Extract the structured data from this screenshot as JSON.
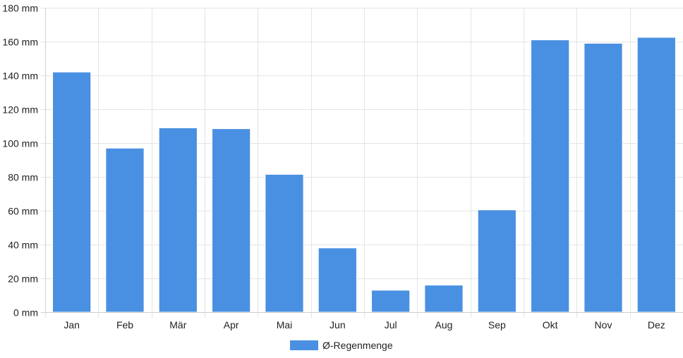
{
  "chart_data": {
    "type": "bar",
    "categories": [
      "Jan",
      "Feb",
      "Mär",
      "Apr",
      "Mai",
      "Jun",
      "Jul",
      "Aug",
      "Sep",
      "Okt",
      "Nov",
      "Dez"
    ],
    "series": [
      {
        "name": "Ø-Regenmenge",
        "color": "#4a90e2",
        "values": [
          142,
          97,
          109,
          108.5,
          81.5,
          38,
          13,
          16,
          60.5,
          161,
          159,
          162.5
        ]
      }
    ],
    "title": "",
    "xlabel": "",
    "ylabel": "",
    "ylim": [
      0,
      180
    ],
    "ytick_step": 20,
    "y_unit": "mm",
    "grid": true,
    "legend_position": "bottom"
  }
}
